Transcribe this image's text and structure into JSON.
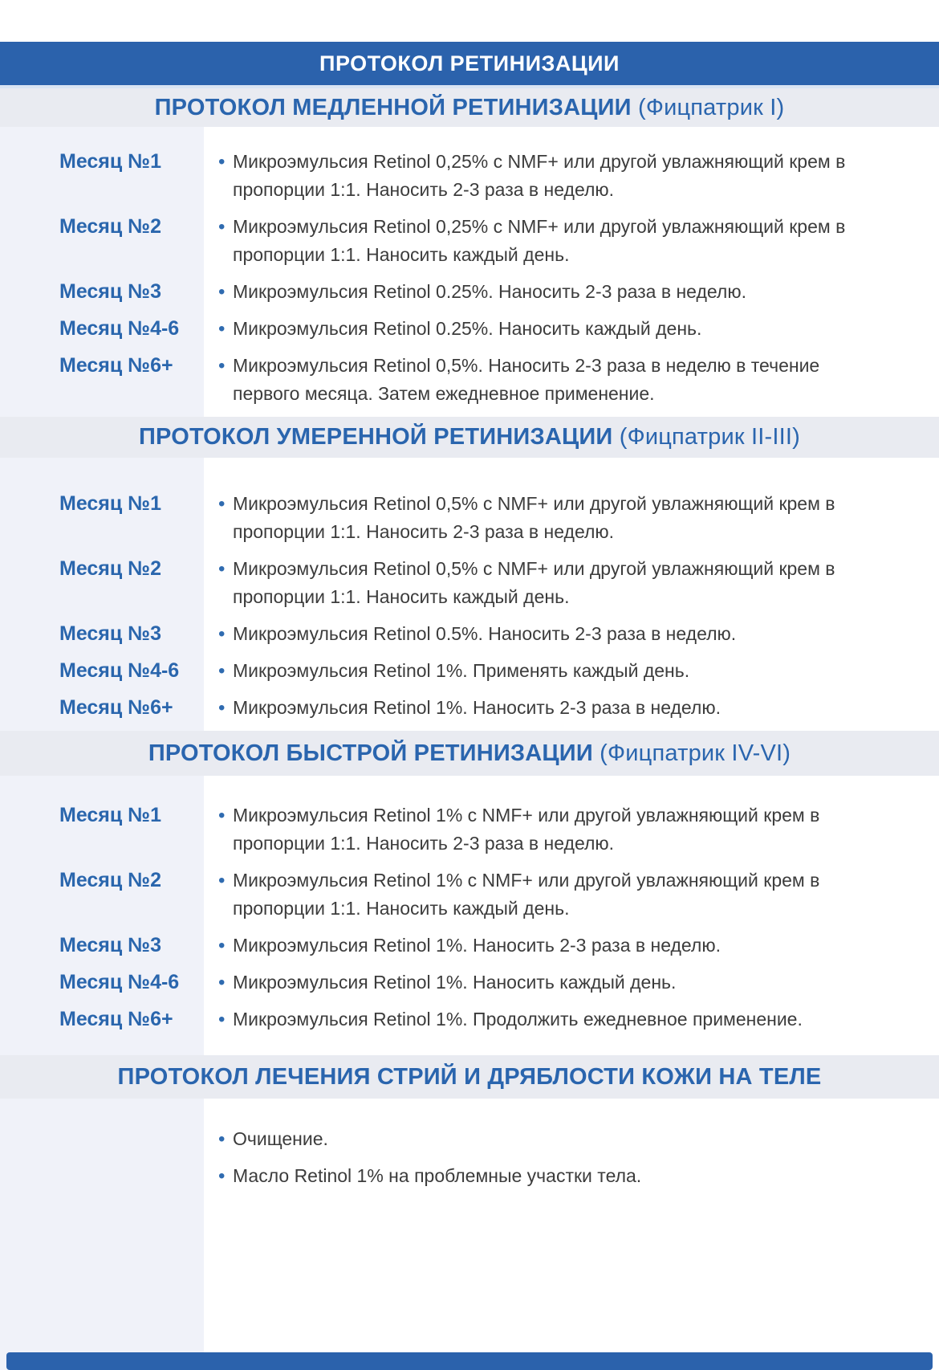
{
  "page": {
    "main_title": "ПРОТОКОЛ РЕТИНИЗАЦИИ"
  },
  "colors": {
    "navy_bar": "#2b62ac",
    "band_background": "#e9ebf1",
    "left_column_background": "#f0f2f9",
    "heading_blue": "#2a65ae",
    "month_label_blue": "#2a66ad",
    "bullet_blue": "#2f6bb0",
    "body_text": "#3c3c3c"
  },
  "bullet_glyph": "•",
  "sections": [
    {
      "title": "ПРОТОКОЛ МЕДЛЕННОЙ РЕТИНИЗАЦИИ",
      "title_suffix": "(Фицпатрик I)",
      "rows": [
        {
          "label": "Месяц №1",
          "text": "Микроэмульсия Retinol 0,25% с NMF+ или другой увлажняющий крем в пропорции 1:1. Наносить 2-3 раза в неделю."
        },
        {
          "label": "Месяц №2",
          "text": "Микроэмульсия Retinol 0,25% с NMF+ или другой увлажняющий крем в пропорции 1:1. Наносить каждый день."
        },
        {
          "label": "Месяц №3",
          "text": "Микроэмульсия Retinol 0.25%. Наносить 2-3 раза в неделю."
        },
        {
          "label": "Месяц №4-6",
          "text": "Микроэмульсия Retinol 0.25%. Наносить каждый день."
        },
        {
          "label": "Месяц №6+",
          "text": "Микроэмульсия Retinol 0,5%. Наносить 2-3 раза в неделю в течение первого месяца. Затем ежедневное применение."
        }
      ]
    },
    {
      "title": "ПРОТОКОЛ УМЕРЕННОЙ РЕТИНИЗАЦИИ",
      "title_suffix": "(Фицпатрик II-III)",
      "rows": [
        {
          "label": "Месяц №1",
          "text": "Микроэмульсия Retinol 0,5% с NMF+ или другой увлажняющий крем в пропорции 1:1. Наносить 2-3 раза в неделю."
        },
        {
          "label": "Месяц №2",
          "text": "Микроэмульсия Retinol 0,5% с NMF+ или другой увлажняющий крем в пропорции 1:1. Наносить каждый день."
        },
        {
          "label": "Месяц №3",
          "text": "Микроэмульсия Retinol 0.5%. Наносить 2-3 раза в неделю."
        },
        {
          "label": "Месяц №4-6",
          "text": "Микроэмульсия Retinol 1%. Применять каждый день."
        },
        {
          "label": "Месяц №6+",
          "text": "Микроэмульсия Retinol 1%. Наносить 2-3 раза в неделю."
        }
      ]
    },
    {
      "title": "ПРОТОКОЛ БЫСТРОЙ РЕТИНИЗАЦИИ",
      "title_suffix": "(Фицпатрик IV-VI)",
      "rows": [
        {
          "label": "Месяц №1",
          "text": "Микроэмульсия Retinol 1% с NMF+ или другой увлажняющий крем в пропорции 1:1. Наносить 2-3 раза в неделю."
        },
        {
          "label": "Месяц №2",
          "text": "Микроэмульсия Retinol 1% с NMF+ или другой увлажняющий крем в пропорции 1:1. Наносить каждый день."
        },
        {
          "label": "Месяц №3",
          "text": "Микроэмульсия Retinol 1%. Наносить 2-3 раза в неделю."
        },
        {
          "label": "Месяц №4-6",
          "text": "Микроэмульсия Retinol 1%. Наносить каждый день."
        },
        {
          "label": "Месяц №6+",
          "text": "Микроэмульсия Retinol 1%. Продолжить ежедневное применение."
        }
      ]
    },
    {
      "title": "ПРОТОКОЛ ЛЕЧЕНИЯ СТРИЙ И ДРЯБЛОСТИ КОЖИ НА ТЕЛЕ",
      "title_suffix": "",
      "rows": [
        {
          "label": "",
          "text": "Очищение."
        },
        {
          "label": "",
          "text": "Масло Retinol 1% на проблемные участки тела."
        }
      ]
    }
  ]
}
